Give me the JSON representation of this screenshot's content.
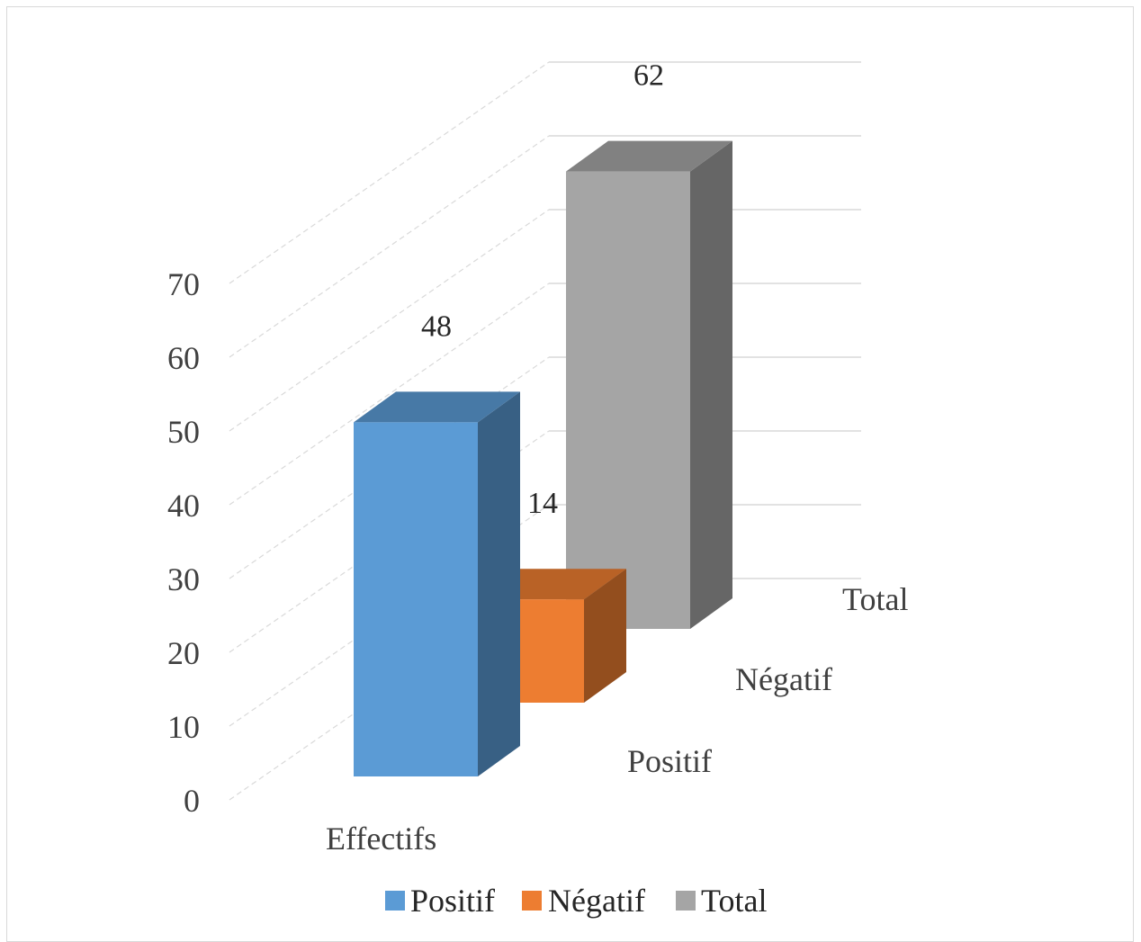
{
  "chart_data": {
    "type": "bar",
    "variant": "3d-column-depth",
    "title": "",
    "xlabel": "",
    "ylabel": "",
    "ylim": [
      0,
      70
    ],
    "yticks": [
      0,
      10,
      20,
      30,
      40,
      50,
      60,
      70
    ],
    "categories": [
      "Effectifs"
    ],
    "depth_labels": [
      "Positif",
      "Négatif",
      "Total"
    ],
    "series": [
      {
        "name": "Positif",
        "values": [
          48
        ],
        "color": "#5b9bd5"
      },
      {
        "name": "Négatif",
        "values": [
          14
        ],
        "color": "#ed7d31"
      },
      {
        "name": "Total",
        "values": [
          62
        ],
        "color": "#a5a5a5"
      }
    ],
    "grid": true,
    "legend": "bottom"
  }
}
